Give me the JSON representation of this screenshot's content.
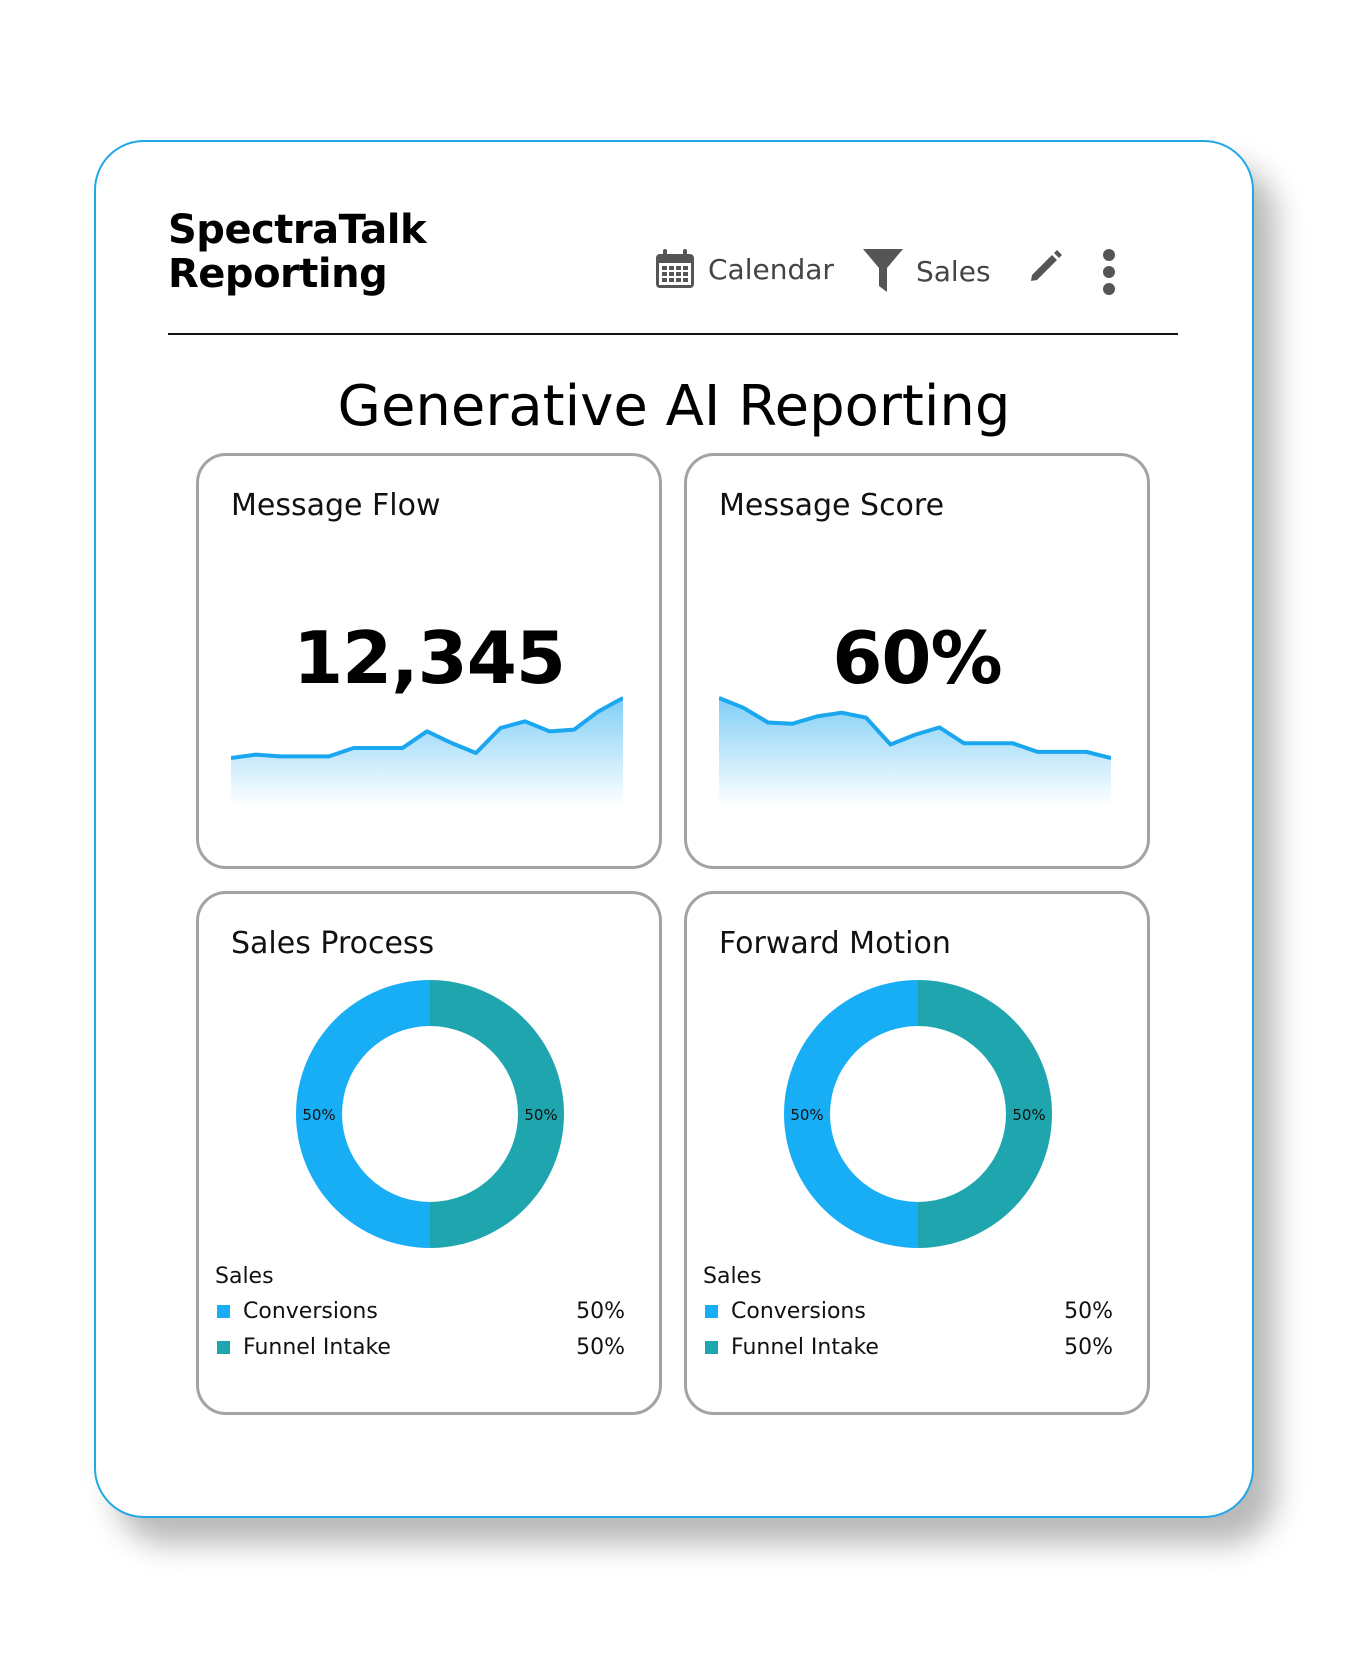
{
  "header": {
    "title_line1": "SpectraTalk",
    "title_line2": "Reporting",
    "calendar_label": "Calendar",
    "filter_label": "Sales"
  },
  "page_title": "Generative AI Reporting",
  "colors": {
    "frame_border": "#22a7e6",
    "line": "#1aa7ef",
    "conversions": "#18aef5",
    "funnel_intake": "#1ea5ae",
    "card_border": "#a3a3a7"
  },
  "icons": [
    "calendar-icon",
    "filter-icon",
    "pencil-icon",
    "more-vertical-icon"
  ],
  "cards": {
    "message_flow": {
      "title": "Message Flow",
      "value": "12,345",
      "trend": [
        30,
        32,
        31,
        31,
        31,
        36,
        36,
        36,
        46,
        39,
        33,
        48,
        52,
        46,
        47,
        58,
        66
      ]
    },
    "message_score": {
      "title": "Message Score",
      "value": "60%",
      "trend": [
        54,
        46,
        34,
        33,
        39,
        42,
        38,
        16,
        24,
        30,
        17,
        17,
        17,
        10,
        10,
        10,
        5
      ]
    },
    "sales_process": {
      "title": "Sales Process",
      "legend_title": "Sales",
      "items": [
        {
          "name": "Conversions",
          "value": "50%",
          "pct": 50
        },
        {
          "name": "Funnel Intake",
          "value": "50%",
          "pct": 50
        }
      ]
    },
    "forward_motion": {
      "title": "Forward Motion",
      "legend_title": "Sales",
      "items": [
        {
          "name": "Conversions",
          "value": "50%",
          "pct": 50
        },
        {
          "name": "Funnel Intake",
          "value": "50%",
          "pct": 50
        }
      ]
    }
  }
}
